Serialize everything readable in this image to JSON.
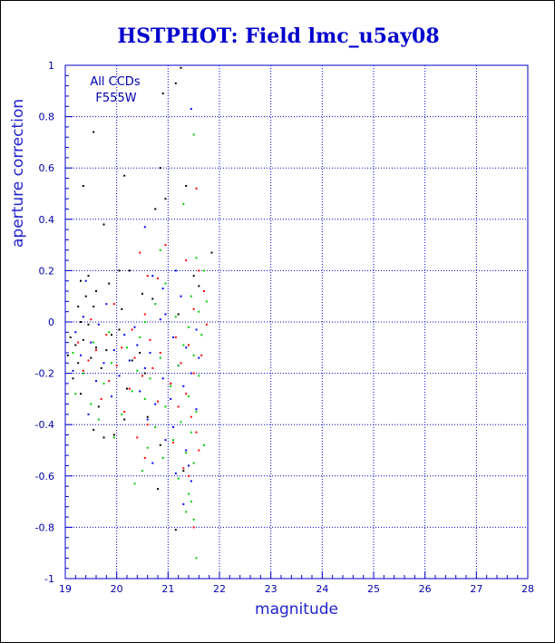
{
  "chart_data": {
    "type": "scatter",
    "title": "HSTPHOT: Field lmc_u5ay08",
    "xlabel": "magnitude",
    "ylabel": "aperture correction",
    "xlim": [
      19,
      28
    ],
    "ylim": [
      -1,
      1
    ],
    "x_ticks": [
      "19",
      "20",
      "21",
      "22",
      "23",
      "24",
      "25",
      "26",
      "27",
      "28"
    ],
    "y_ticks": [
      "-1",
      "-0.8",
      "-0.6",
      "-0.4",
      "-0.2",
      "0",
      "0.2",
      "0.4",
      "0.6",
      "0.8",
      "1"
    ],
    "grid": true,
    "annotations": [
      "All CCDs",
      "F555W"
    ],
    "colors": {
      "axis": "#0000cc",
      "grid": "#0000cc",
      "title": "#0000cc"
    },
    "series": [
      {
        "color": "#000000",
        "points": [
          [
            21.25,
            0.99
          ],
          [
            20.9,
            0.89
          ],
          [
            21.15,
            0.93
          ],
          [
            19.55,
            0.74
          ],
          [
            20.85,
            0.6
          ],
          [
            20.15,
            0.57
          ],
          [
            19.35,
            0.53
          ],
          [
            21.35,
            0.53
          ],
          [
            20.95,
            0.48
          ],
          [
            20.75,
            0.44
          ],
          [
            19.75,
            0.38
          ],
          [
            21.85,
            0.27
          ],
          [
            20.05,
            0.2
          ],
          [
            20.25,
            0.2
          ],
          [
            19.45,
            0.18
          ],
          [
            21.5,
            0.18
          ],
          [
            19.3,
            0.16
          ],
          [
            19.85,
            0.15
          ],
          [
            21.6,
            0.14
          ],
          [
            19.6,
            0.12
          ],
          [
            20.5,
            0.11
          ],
          [
            19.4,
            0.1
          ],
          [
            20.7,
            0.09
          ],
          [
            19.55,
            0.06
          ],
          [
            20.1,
            0.05
          ],
          [
            19.25,
            0.06
          ],
          [
            21.2,
            0.03
          ],
          [
            19.3,
            0.0
          ],
          [
            19.45,
            -0.01
          ],
          [
            20.05,
            -0.03
          ],
          [
            19.9,
            -0.05
          ],
          [
            19.1,
            -0.06
          ],
          [
            19.35,
            -0.07
          ],
          [
            19.2,
            -0.09
          ],
          [
            19.6,
            -0.1
          ],
          [
            19.8,
            -0.11
          ],
          [
            20.45,
            -0.12
          ],
          [
            19.05,
            -0.13
          ],
          [
            19.5,
            -0.14
          ],
          [
            20.3,
            -0.15
          ],
          [
            19.25,
            -0.16
          ],
          [
            19.7,
            -0.18
          ],
          [
            20.55,
            -0.2
          ],
          [
            19.15,
            -0.22
          ],
          [
            21.05,
            -0.24
          ],
          [
            20.2,
            -0.26
          ],
          [
            19.3,
            -0.28
          ],
          [
            19.65,
            -0.33
          ],
          [
            20.6,
            -0.37
          ],
          [
            20.15,
            -0.38
          ],
          [
            19.55,
            -0.42
          ],
          [
            19.95,
            -0.44
          ],
          [
            19.75,
            -0.45
          ],
          [
            20.85,
            -0.48
          ],
          [
            21.3,
            -0.58
          ],
          [
            20.8,
            -0.65
          ],
          [
            21.15,
            -0.81
          ]
        ]
      },
      {
        "color": "#0000ff",
        "points": [
          [
            21.45,
            0.83
          ],
          [
            20.55,
            0.37
          ],
          [
            21.15,
            0.2
          ],
          [
            20.7,
            0.18
          ],
          [
            19.4,
            0.16
          ],
          [
            20.9,
            0.13
          ],
          [
            21.25,
            0.1
          ],
          [
            19.8,
            0.07
          ],
          [
            20.95,
            0.03
          ],
          [
            19.35,
            0.02
          ],
          [
            20.85,
            0.01
          ],
          [
            19.65,
            -0.01
          ],
          [
            20.35,
            -0.02
          ],
          [
            21.55,
            -0.03
          ],
          [
            19.2,
            -0.04
          ],
          [
            20.15,
            -0.05
          ],
          [
            21.1,
            -0.06
          ],
          [
            19.5,
            -0.08
          ],
          [
            20.4,
            -0.09
          ],
          [
            21.35,
            -0.1
          ],
          [
            19.95,
            -0.11
          ],
          [
            20.65,
            -0.12
          ],
          [
            19.3,
            -0.13
          ],
          [
            21.6,
            -0.14
          ],
          [
            20.25,
            -0.15
          ],
          [
            19.75,
            -0.16
          ],
          [
            21.2,
            -0.17
          ],
          [
            20.55,
            -0.18
          ],
          [
            19.15,
            -0.19
          ],
          [
            21.45,
            -0.2
          ],
          [
            20.05,
            -0.21
          ],
          [
            20.9,
            -0.22
          ],
          [
            19.6,
            -0.23
          ],
          [
            21.3,
            -0.25
          ],
          [
            20.45,
            -0.27
          ],
          [
            19.9,
            -0.29
          ],
          [
            21.05,
            -0.3
          ],
          [
            20.75,
            -0.32
          ],
          [
            21.55,
            -0.34
          ],
          [
            19.45,
            -0.36
          ],
          [
            20.6,
            -0.38
          ],
          [
            21.1,
            -0.41
          ],
          [
            20.95,
            -0.46
          ],
          [
            21.35,
            -0.5
          ],
          [
            20.7,
            -0.55
          ],
          [
            21.4,
            -0.56
          ],
          [
            21.15,
            -0.59
          ],
          [
            21.45,
            -0.62
          ],
          [
            21.3,
            -0.71
          ]
        ]
      },
      {
        "color": "#ff0000",
        "points": [
          [
            21.55,
            0.52
          ],
          [
            20.95,
            0.3
          ],
          [
            20.45,
            0.27
          ],
          [
            21.35,
            0.24
          ],
          [
            21.6,
            0.2
          ],
          [
            20.6,
            0.18
          ],
          [
            20.8,
            0.17
          ],
          [
            21.7,
            0.12
          ],
          [
            19.95,
            0.07
          ],
          [
            21.5,
            0.05
          ],
          [
            20.55,
            0.03
          ],
          [
            19.5,
            0.01
          ],
          [
            21.75,
            -0.01
          ],
          [
            20.3,
            -0.03
          ],
          [
            19.8,
            -0.05
          ],
          [
            21.15,
            -0.06
          ],
          [
            20.65,
            -0.07
          ],
          [
            19.25,
            -0.08
          ],
          [
            21.4,
            -0.09
          ],
          [
            20.1,
            -0.1
          ],
          [
            19.6,
            -0.11
          ],
          [
            20.85,
            -0.12
          ],
          [
            21.65,
            -0.13
          ],
          [
            20.35,
            -0.14
          ],
          [
            19.45,
            -0.15
          ],
          [
            21.25,
            -0.16
          ],
          [
            20.0,
            -0.17
          ],
          [
            20.7,
            -0.18
          ],
          [
            19.35,
            -0.19
          ],
          [
            21.5,
            -0.2
          ],
          [
            20.5,
            -0.21
          ],
          [
            19.85,
            -0.23
          ],
          [
            21.05,
            -0.24
          ],
          [
            20.25,
            -0.26
          ],
          [
            21.35,
            -0.28
          ],
          [
            19.7,
            -0.3
          ],
          [
            20.8,
            -0.31
          ],
          [
            21.2,
            -0.33
          ],
          [
            20.15,
            -0.35
          ],
          [
            21.45,
            -0.37
          ],
          [
            20.6,
            -0.4
          ],
          [
            21.55,
            -0.43
          ],
          [
            20.4,
            -0.45
          ],
          [
            21.1,
            -0.47
          ],
          [
            21.6,
            -0.5
          ],
          [
            20.55,
            -0.53
          ],
          [
            21.3,
            -0.57
          ],
          [
            21.4,
            -0.6
          ],
          [
            21.5,
            -0.8
          ]
        ]
      },
      {
        "color": "#00cc00",
        "points": [
          [
            21.5,
            0.73
          ],
          [
            21.3,
            0.46
          ],
          [
            20.85,
            0.28
          ],
          [
            21.55,
            0.25
          ],
          [
            21.7,
            0.2
          ],
          [
            20.95,
            0.15
          ],
          [
            21.45,
            0.1
          ],
          [
            21.75,
            0.08
          ],
          [
            20.75,
            0.07
          ],
          [
            21.6,
            0.04
          ],
          [
            21.15,
            0.02
          ],
          [
            20.55,
            0.0
          ],
          [
            21.4,
            -0.02
          ],
          [
            19.85,
            -0.04
          ],
          [
            21.65,
            -0.05
          ],
          [
            20.45,
            -0.06
          ],
          [
            19.55,
            -0.08
          ],
          [
            21.3,
            -0.09
          ],
          [
            20.2,
            -0.1
          ],
          [
            19.15,
            -0.12
          ],
          [
            21.5,
            -0.13
          ],
          [
            20.85,
            -0.14
          ],
          [
            19.9,
            -0.16
          ],
          [
            21.2,
            -0.17
          ],
          [
            20.4,
            -0.19
          ],
          [
            19.35,
            -0.2
          ],
          [
            21.6,
            -0.21
          ],
          [
            20.65,
            -0.22
          ],
          [
            19.75,
            -0.24
          ],
          [
            21.05,
            -0.25
          ],
          [
            20.3,
            -0.27
          ],
          [
            19.2,
            -0.28
          ],
          [
            21.4,
            -0.29
          ],
          [
            20.55,
            -0.3
          ],
          [
            19.5,
            -0.32
          ],
          [
            20.95,
            -0.33
          ],
          [
            21.55,
            -0.35
          ],
          [
            20.1,
            -0.36
          ],
          [
            19.65,
            -0.38
          ],
          [
            21.25,
            -0.39
          ],
          [
            20.75,
            -0.41
          ],
          [
            21.45,
            -0.43
          ],
          [
            19.95,
            -0.45
          ],
          [
            21.1,
            -0.46
          ],
          [
            21.7,
            -0.48
          ],
          [
            20.6,
            -0.49
          ],
          [
            21.35,
            -0.51
          ],
          [
            20.9,
            -0.53
          ],
          [
            21.5,
            -0.55
          ],
          [
            20.5,
            -0.58
          ],
          [
            21.2,
            -0.61
          ],
          [
            20.35,
            -0.63
          ],
          [
            21.4,
            -0.67
          ],
          [
            21.45,
            -0.7
          ],
          [
            21.35,
            -0.74
          ],
          [
            21.5,
            -0.77
          ],
          [
            21.55,
            -0.92
          ]
        ]
      }
    ]
  }
}
